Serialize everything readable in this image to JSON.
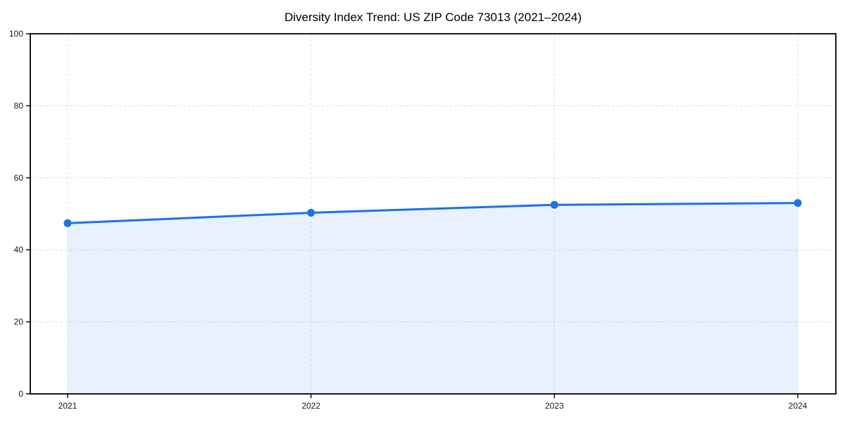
{
  "page": {
    "background": "#ffffff"
  },
  "chart_data": {
    "type": "area",
    "title": "Diversity Index Trend: US ZIP Code 73013 (2021–2024)",
    "categories": [
      "2021",
      "2022",
      "2023",
      "2024"
    ],
    "series": [
      {
        "name": "Diversity Index",
        "values": [
          47.4,
          50.3,
          52.5,
          53.0
        ]
      }
    ],
    "xlabel": "",
    "ylabel": "",
    "ylim": [
      0,
      100
    ],
    "yticks": [
      0,
      20,
      40,
      60,
      80,
      100
    ],
    "grid": true,
    "grid_style": "dashed",
    "legend": false,
    "colors": {
      "line": "#1a73e8",
      "marker": "#1a73e8",
      "fill": "#1a73e8",
      "fill_opacity": 0.1,
      "grid": "#e0e0e0",
      "axis": "#000000",
      "text": "#1a1a1a",
      "background": "#ffffff"
    }
  }
}
